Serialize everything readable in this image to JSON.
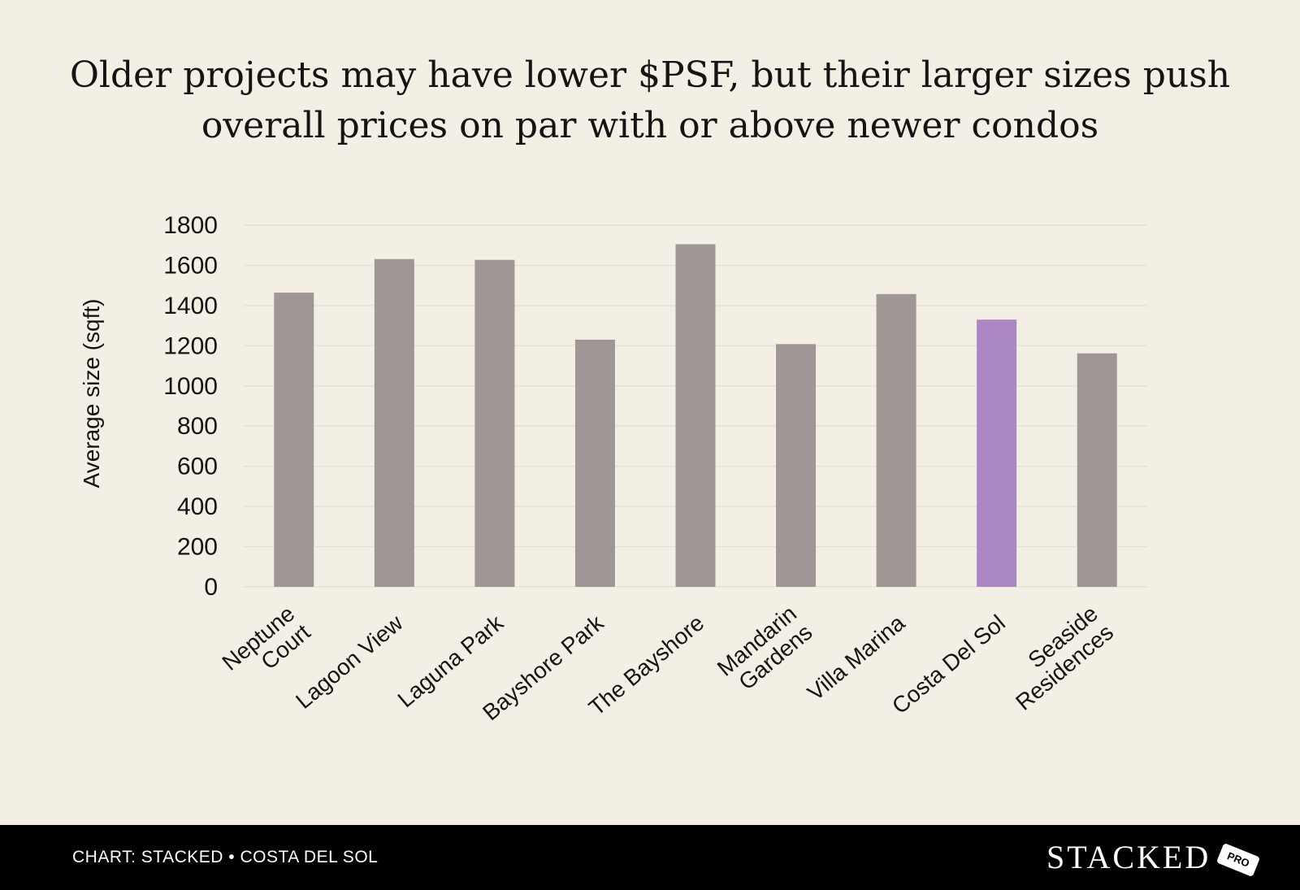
{
  "chart_data": {
    "type": "bar",
    "title_lines": [
      "Older projects may have lower $PSF, but their larger sizes push",
      "overall prices on par with or above newer condos"
    ],
    "ylabel": "Average size (sqft)",
    "xlabel": "",
    "ylim": [
      0,
      1800
    ],
    "yticks": [
      0,
      200,
      400,
      600,
      800,
      1000,
      1200,
      1400,
      1600,
      1800
    ],
    "grid": true,
    "categories": [
      [
        "Neptune",
        "Court"
      ],
      [
        "Lagoon View"
      ],
      [
        "Laguna Park"
      ],
      [
        "Bayshore Park"
      ],
      [
        "The Bayshore"
      ],
      [
        "Mandarin",
        "Gardens"
      ],
      [
        "Villa Marina"
      ],
      [
        "Costa Del Sol"
      ],
      [
        "Seaside",
        "Residences"
      ]
    ],
    "values": [
      1464,
      1631,
      1627,
      1230,
      1705,
      1208,
      1457,
      1330,
      1162
    ],
    "highlight": "Costa Del Sol",
    "colors": {
      "bar": "#9f9795",
      "highlight": "#ab88c3",
      "grid": "#e6e1d6",
      "text": "#141414",
      "background": "#f3efe4",
      "footer": "#000000"
    }
  },
  "footer": {
    "caption": "CHART: STACKED • COSTA DEL SOL",
    "brand": "STACKED",
    "brand_tag": "PRO"
  }
}
